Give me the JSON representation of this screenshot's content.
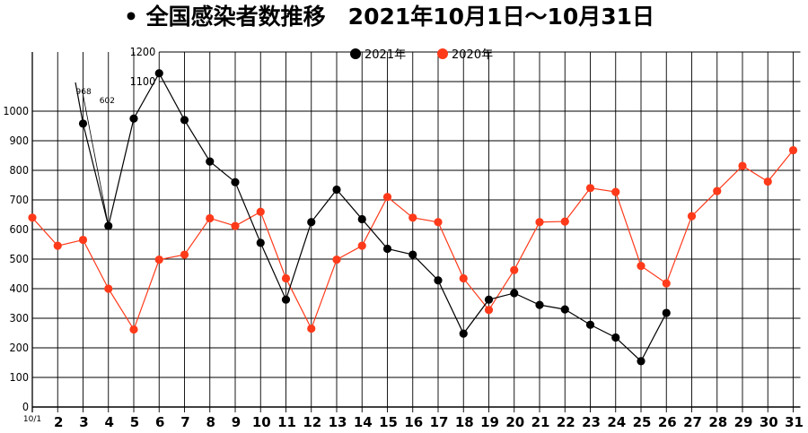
{
  "chart_data": {
    "type": "line",
    "title": "• 全国感染者数推移　2021年10月1日～10月31日",
    "x": [
      "10/1",
      "2",
      "3",
      "4",
      "5",
      "6",
      "7",
      "8",
      "9",
      "10",
      "11",
      "12",
      "13",
      "14",
      "15",
      "16",
      "17",
      "18",
      "19",
      "20",
      "21",
      "22",
      "23",
      "24",
      "25",
      "26",
      "27",
      "28",
      "29",
      "30",
      "31"
    ],
    "y_ticks": [
      "0",
      "100",
      "200",
      "300",
      "400",
      "500",
      "600",
      "700",
      "800",
      "900",
      "1000",
      "1100",
      "1200"
    ],
    "ylim": [
      0,
      1200
    ],
    "grid": true,
    "legend_position": "top-center",
    "series": [
      {
        "name": "2021年",
        "color": "#000000",
        "values": [
          null,
          null,
          958,
          612,
          975,
          1128,
          970,
          830,
          760,
          555,
          363,
          625,
          735,
          635,
          535,
          515,
          428,
          248,
          363,
          385,
          345,
          330,
          278,
          235,
          155,
          318,
          null,
          null,
          null,
          null,
          null
        ]
      },
      {
        "name": "2020年",
        "color": "#ff3a1a",
        "values": [
          640,
          545,
          565,
          400,
          262,
          498,
          515,
          638,
          612,
          660,
          435,
          265,
          498,
          545,
          710,
          640,
          625,
          435,
          328,
          463,
          625,
          627,
          740,
          727,
          477,
          418,
          645,
          730,
          815,
          762,
          868
        ]
      }
    ],
    "annotations": [
      "968",
      "602"
    ]
  }
}
